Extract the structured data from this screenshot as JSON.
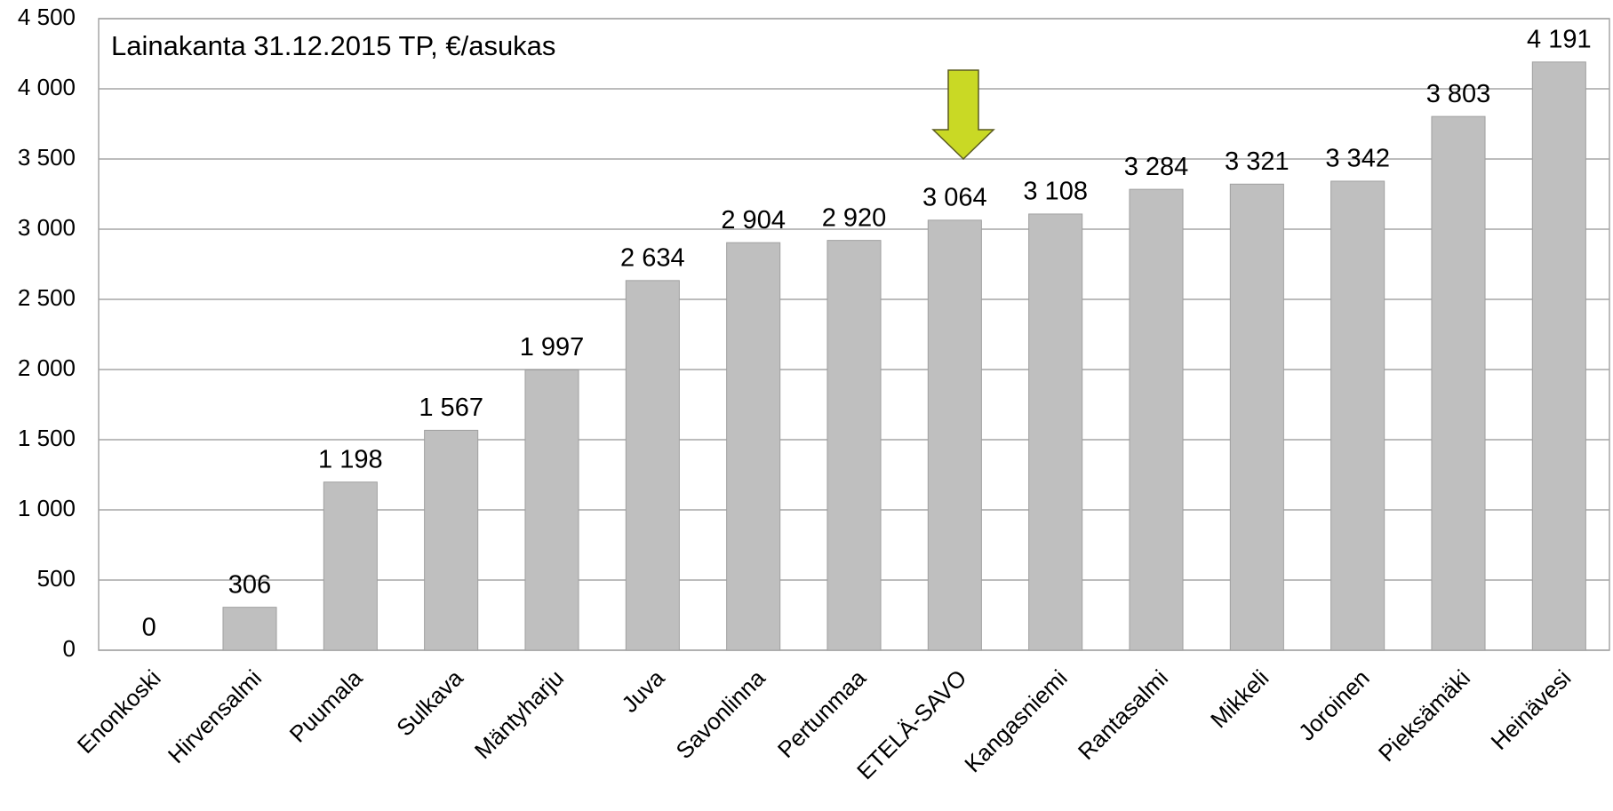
{
  "chart_data": {
    "type": "bar",
    "title": "Lainakanta 31.12.2015 TP, €/asukas",
    "categories": [
      "Enonkoski",
      "Hirvensalmi",
      "Puumala",
      "Sulkava",
      "Mäntyharju",
      "Juva",
      "Savonlinna",
      "Pertunmaa",
      "ETELÄ-SAVO",
      "Kangasniemi",
      "Rantasalmi",
      "Mikkeli",
      "Joroinen",
      "Pieksämäki",
      "Heinävesi"
    ],
    "values": [
      0,
      306,
      1198,
      1567,
      1997,
      2634,
      2904,
      2920,
      3064,
      3108,
      3284,
      3321,
      3342,
      3803,
      4191
    ],
    "value_labels": [
      "0",
      "306",
      "1 198",
      "1 567",
      "1 997",
      "2 634",
      "2 904",
      "2 920",
      "3 064",
      "3 108",
      "3 284",
      "3 321",
      "3 342",
      "3 803",
      "4 191"
    ],
    "color": "#bfbfbf",
    "ylim": [
      0,
      4500
    ],
    "yticks": [
      0,
      500,
      {
        "value": 1000,
        "label": "1 000"
      },
      {
        "value": 1500,
        "label": "1 500"
      },
      {
        "value": 2000,
        "label": "2 000"
      },
      {
        "value": 2500,
        "label": "2 500"
      },
      {
        "value": 3000,
        "label": "3 000"
      },
      {
        "value": 3500,
        "label": "3 500"
      },
      {
        "value": 4000,
        "label": "4 000"
      },
      {
        "value": 4500,
        "label": "4 500"
      }
    ],
    "grid": true
  }
}
